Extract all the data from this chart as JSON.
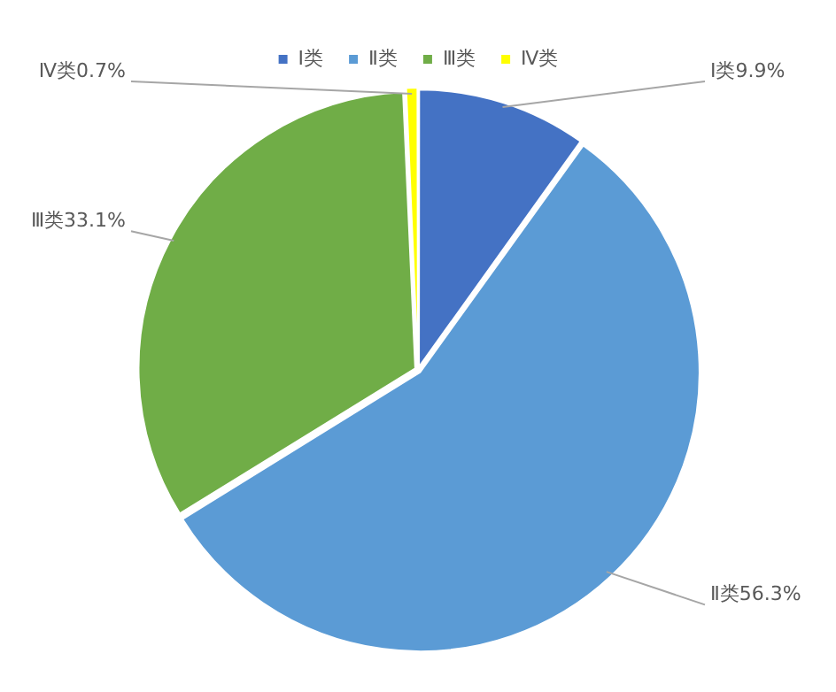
{
  "chart_data": {
    "type": "pie",
    "categories": [
      "Ⅰ类",
      "Ⅱ类",
      "Ⅲ类",
      "Ⅳ类"
    ],
    "values": [
      9.9,
      56.3,
      33.1,
      0.7
    ],
    "colors": [
      "#4472c4",
      "#5b9bd5",
      "#70ad47",
      "#ffff00"
    ],
    "value_labels": [
      "Ⅰ类9.9%",
      "Ⅱ类56.3%",
      "Ⅲ类33.1%",
      "Ⅳ类0.7%"
    ],
    "legend": "top"
  }
}
